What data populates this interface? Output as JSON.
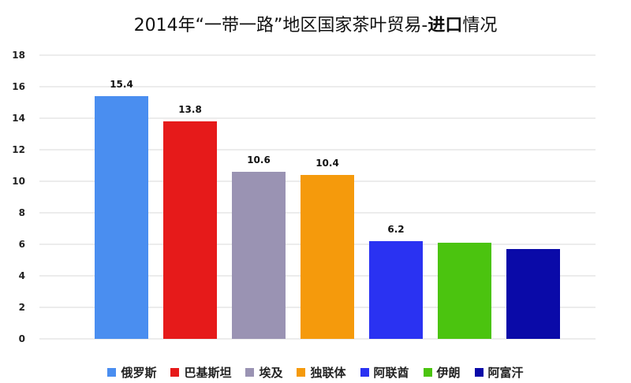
{
  "title": {
    "prefix": "2014年“一带一路”地区国家茶叶贸易-",
    "emphasis": "进口",
    "suffix": "情况"
  },
  "chart_data": {
    "type": "bar",
    "title": "2014年“一带一路”地区国家茶叶贸易-进口情况",
    "categories": [
      "俄罗斯",
      "巴基斯坦",
      "埃及",
      "独联体",
      "阿联酋",
      "伊朗",
      "阿富汗"
    ],
    "values": [
      15.4,
      13.8,
      10.6,
      10.4,
      6.2,
      6.1,
      5.7
    ],
    "data_labels": [
      "15.4",
      "13.8",
      "10.6",
      "10.4",
      "6.2",
      "",
      ""
    ],
    "colors": [
      "#4a8ef0",
      "#e61a1a",
      "#9a93b3",
      "#f59a0c",
      "#2a32f2",
      "#4bc40f",
      "#0a0aa8"
    ],
    "ylim": [
      0,
      18
    ],
    "yticks": [
      0,
      2,
      4,
      6,
      8,
      10,
      12,
      14,
      16,
      18
    ],
    "grid": true,
    "legend_position": "bottom"
  }
}
